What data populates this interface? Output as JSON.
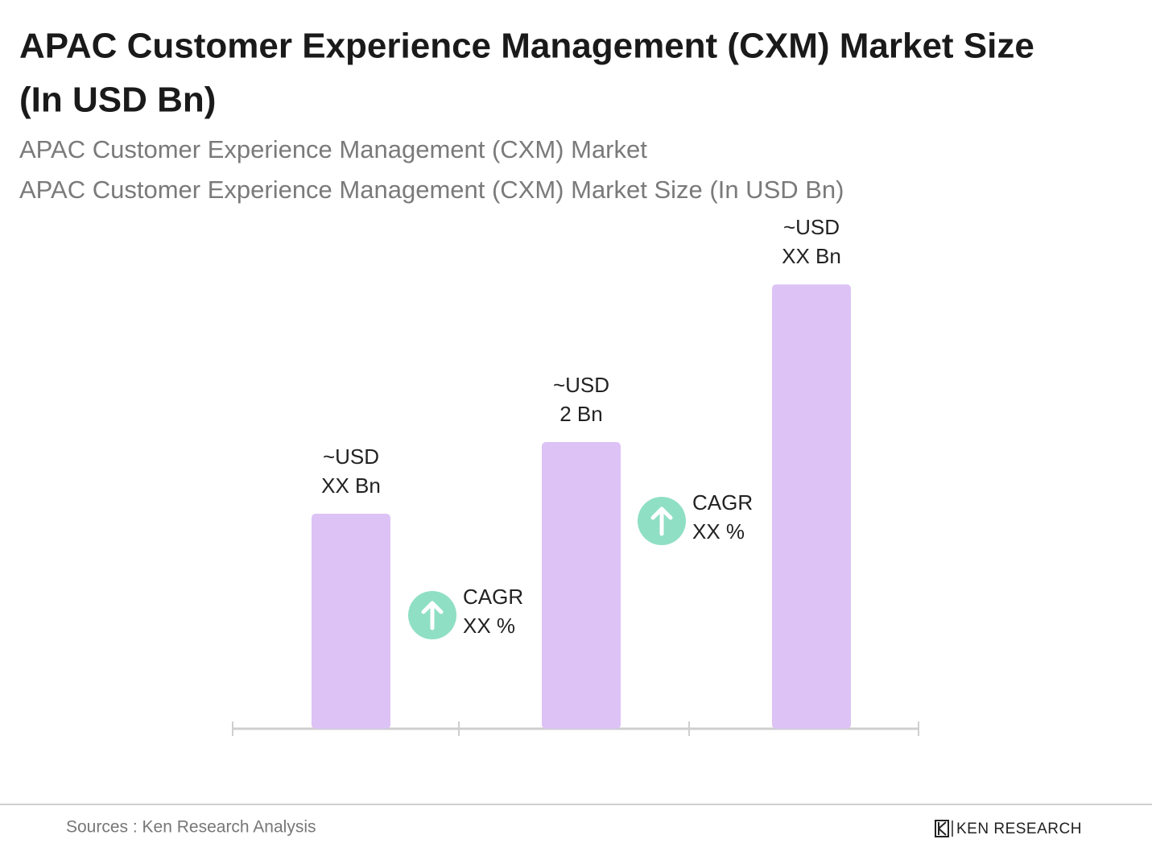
{
  "chart_data": {
    "type": "bar",
    "title": [
      "APAC Customer Experience Management (CXM) Market Size",
      "(In USD Bn)"
    ],
    "subtitle": [
      "APAC Customer Experience Management (CXM) Market",
      "APAC Customer Experience Management (CXM) Market Size (In USD Bn)"
    ],
    "categories": [
      null,
      null,
      null
    ],
    "values": [
      1.5,
      2,
      3.1
    ],
    "value_labels": [
      [
        "~USD",
        "XX Bn"
      ],
      [
        "~USD",
        "2 Bn"
      ],
      [
        "~USD",
        "XX Bn"
      ]
    ],
    "color": "#dcc2f5",
    "annotations": [
      [
        "CAGR",
        "XX %"
      ],
      [
        "CAGR",
        "XX %"
      ]
    ],
    "annotation_color": "#8fdfc4",
    "source": "Sources : Ken Research Analysis",
    "logo": "KEN RESEARCH"
  }
}
